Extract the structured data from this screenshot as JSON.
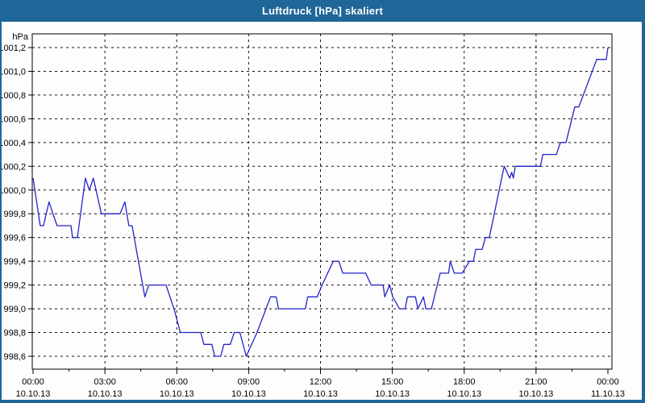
{
  "window": {
    "title": "Luftdruck [hPa] skaliert"
  },
  "colors": {
    "title_bar": "#1f6699",
    "title_text": "#ffffff",
    "line": "#2323cb",
    "grid": "#111111",
    "axis": "#000000",
    "label_text": "#000000",
    "background": "#fcfdfc"
  },
  "chart_data": {
    "type": "line",
    "title": "Luftdruck [hPa] skaliert",
    "ylabel": "hPa",
    "xlabel": "",
    "grid": true,
    "legend": false,
    "ylim": [
      998.6,
      1001.2
    ],
    "y_tick_step": 0.2,
    "x_range_minutes": [
      0,
      1440
    ],
    "x_major_step_minutes": 180,
    "x_minor_step_minutes": 90,
    "y_ticks": [
      {
        "value": 1001.2,
        "label": "1001,2"
      },
      {
        "value": 1001.0,
        "label": "1001,0"
      },
      {
        "value": 1000.8,
        "label": "1000,8"
      },
      {
        "value": 1000.6,
        "label": "1000,6"
      },
      {
        "value": 1000.4,
        "label": "1000,4"
      },
      {
        "value": 1000.2,
        "label": "1000,2"
      },
      {
        "value": 1000.0,
        "label": "1000,0"
      },
      {
        "value": 999.8,
        "label": "999,8"
      },
      {
        "value": 999.6,
        "label": "999,6"
      },
      {
        "value": 999.4,
        "label": "999,4"
      },
      {
        "value": 999.2,
        "label": "999,2"
      },
      {
        "value": 999.0,
        "label": "999,0"
      },
      {
        "value": 998.8,
        "label": "998,8"
      },
      {
        "value": 998.6,
        "label": "998,6"
      }
    ],
    "x_ticks": [
      {
        "minutes": 0,
        "time": "00:00",
        "date": "10.10.13"
      },
      {
        "minutes": 180,
        "time": "03:00",
        "date": "10.10.13"
      },
      {
        "minutes": 360,
        "time": "06:00",
        "date": "10.10.13"
      },
      {
        "minutes": 540,
        "time": "09:00",
        "date": "10.10.13"
      },
      {
        "minutes": 720,
        "time": "12:00",
        "date": "10.10.13"
      },
      {
        "minutes": 900,
        "time": "15:00",
        "date": "10.10.13"
      },
      {
        "minutes": 1080,
        "time": "18:00",
        "date": "10.10.13"
      },
      {
        "minutes": 1260,
        "time": "21:00",
        "date": "10.10.13"
      },
      {
        "minutes": 1440,
        "time": "00:00",
        "date": "11.10.13"
      }
    ],
    "series": [
      {
        "name": "Luftdruck",
        "unit": "hPa",
        "points": [
          [
            0,
            1000.1
          ],
          [
            18,
            999.7
          ],
          [
            26,
            999.7
          ],
          [
            40,
            999.9
          ],
          [
            60,
            999.7
          ],
          [
            95,
            999.7
          ],
          [
            99,
            999.6
          ],
          [
            111,
            999.6
          ],
          [
            131,
            1000.1
          ],
          [
            141,
            1000.0
          ],
          [
            151,
            1000.1
          ],
          [
            171,
            999.8
          ],
          [
            218,
            999.8
          ],
          [
            230,
            999.9
          ],
          [
            240,
            999.7
          ],
          [
            248,
            999.7
          ],
          [
            280,
            999.1
          ],
          [
            290,
            999.2
          ],
          [
            333,
            999.2
          ],
          [
            353,
            999.0
          ],
          [
            369,
            998.8
          ],
          [
            420,
            998.8
          ],
          [
            428,
            998.7
          ],
          [
            448,
            998.7
          ],
          [
            455,
            998.6
          ],
          [
            470,
            998.6
          ],
          [
            478,
            998.7
          ],
          [
            494,
            998.7
          ],
          [
            504,
            998.8
          ],
          [
            518,
            998.8
          ],
          [
            534,
            998.6
          ],
          [
            561,
            998.8
          ],
          [
            595,
            999.1
          ],
          [
            609,
            999.1
          ],
          [
            615,
            999.0
          ],
          [
            682,
            999.0
          ],
          [
            688,
            999.1
          ],
          [
            712,
            999.1
          ],
          [
            724,
            999.2
          ],
          [
            752,
            999.4
          ],
          [
            766,
            999.4
          ],
          [
            776,
            999.3
          ],
          [
            833,
            999.3
          ],
          [
            847,
            999.2
          ],
          [
            877,
            999.2
          ],
          [
            881,
            999.1
          ],
          [
            893,
            999.2
          ],
          [
            901,
            999.1
          ],
          [
            918,
            999.0
          ],
          [
            932,
            999.0
          ],
          [
            938,
            999.1
          ],
          [
            958,
            999.1
          ],
          [
            964,
            999.0
          ],
          [
            978,
            999.1
          ],
          [
            984,
            999.0
          ],
          [
            998,
            999.0
          ],
          [
            1020,
            999.3
          ],
          [
            1041,
            999.3
          ],
          [
            1045,
            999.4
          ],
          [
            1055,
            999.3
          ],
          [
            1075,
            999.3
          ],
          [
            1093,
            999.4
          ],
          [
            1103,
            999.4
          ],
          [
            1109,
            999.5
          ],
          [
            1125,
            999.5
          ],
          [
            1133,
            999.6
          ],
          [
            1143,
            999.6
          ],
          [
            1180,
            1000.2
          ],
          [
            1194,
            1000.1
          ],
          [
            1199,
            1000.15
          ],
          [
            1203,
            1000.1
          ],
          [
            1208,
            1000.2
          ],
          [
            1271,
            1000.2
          ],
          [
            1277,
            1000.3
          ],
          [
            1311,
            1000.3
          ],
          [
            1321,
            1000.4
          ],
          [
            1335,
            1000.4
          ],
          [
            1357,
            1000.7
          ],
          [
            1367,
            1000.7
          ],
          [
            1412,
            1001.1
          ],
          [
            1436,
            1001.1
          ],
          [
            1440,
            1001.2
          ]
        ]
      }
    ]
  }
}
